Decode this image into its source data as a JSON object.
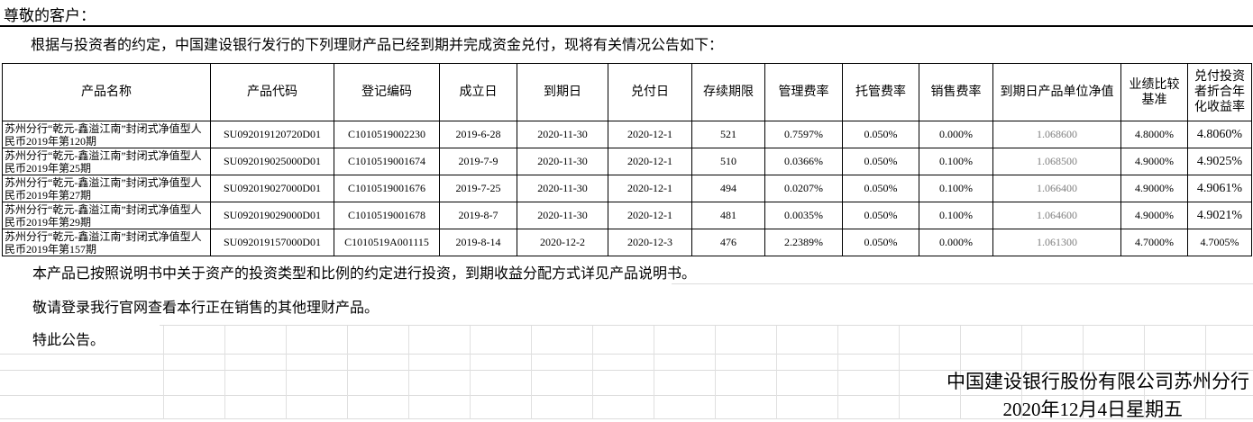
{
  "page": {
    "salutation": "尊敬的客户：",
    "intro": "根据与投资者的约定，中国建设银行发行的下列理财产品已经到期并完成资金兑付，现将有关情况公告如下：",
    "notes": [
      "本产品已按照说明书中关于资产的投资类型和比例的约定进行投资，到期收益分配方式详见产品说明书。",
      "敬请登录我行官网查看本行正在销售的其他理财产品。",
      "特此公告。"
    ],
    "footer": {
      "company": "中国建设银行股份有限公司苏州分行",
      "date": "2020年12月4日星期五"
    }
  },
  "table": {
    "headers": [
      "产品名称",
      "产品代码",
      "登记编码",
      "成立日",
      "到期日",
      "兑付日",
      "存续期限",
      "管理费率",
      "托管费率",
      "销售费率",
      "到期日产品单位净值",
      "业绩比较基准",
      "兑付投资者折合年化收益率"
    ],
    "rows": [
      [
        "苏州分行“乾元-鑫溢江南”封闭式净值型人民币2019年第120期",
        "SU092019120720D01",
        "C1010519002230",
        "2019-6-28",
        "2020-11-30",
        "2020-12-1",
        "521",
        "0.7597%",
        "0.050%",
        "0.000%",
        "1.068600",
        "4.8000%",
        "4.8060%"
      ],
      [
        "苏州分行“乾元-鑫溢江南”封闭式净值型人民币2019年第25期",
        "SU092019025000D01",
        "C1010519001674",
        "2019-7-9",
        "2020-11-30",
        "2020-12-1",
        "510",
        "0.0366%",
        "0.050%",
        "0.100%",
        "1.068500",
        "4.9000%",
        "4.9025%"
      ],
      [
        "苏州分行“乾元-鑫溢江南”封闭式净值型人民币2019年第27期",
        "SU092019027000D01",
        "C1010519001676",
        "2019-7-25",
        "2020-11-30",
        "2020-12-1",
        "494",
        "0.0207%",
        "0.050%",
        "0.100%",
        "1.066400",
        "4.9000%",
        "4.9061%"
      ],
      [
        "苏州分行“乾元-鑫溢江南”封闭式净值型人民币2019年第29期",
        "SU092019029000D01",
        "C1010519001678",
        "2019-8-7",
        "2020-11-30",
        "2020-12-1",
        "481",
        "0.0035%",
        "0.050%",
        "0.100%",
        "1.064600",
        "4.9000%",
        "4.9021%"
      ],
      [
        "苏州分行“乾元-鑫溢江南”封闭式净值型人民币2019年第157期",
        "SU092019157000D01",
        "C1010519A001115",
        "2019-8-14",
        "2020-12-2",
        "2020-12-3",
        "476",
        "2.2389%",
        "0.050%",
        "0.000%",
        "1.061300",
        "4.7000%",
        "4.7005%"
      ]
    ]
  },
  "colors": {
    "text": "#000000",
    "net_value_text": "#808080",
    "table_border": "#000000",
    "gridline": "#dcdcdc"
  }
}
